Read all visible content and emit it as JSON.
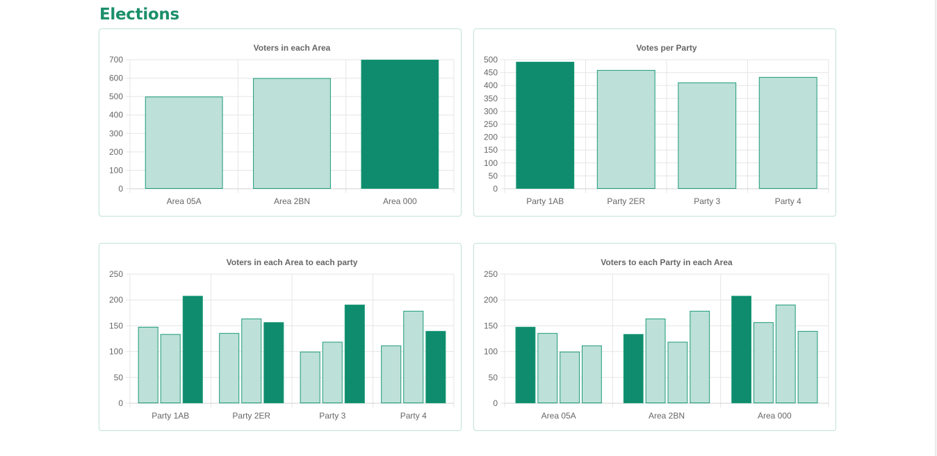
{
  "page": {
    "title": "Elections"
  },
  "colors": {
    "highlight": "#0e8c6d",
    "light": "#bde0d8",
    "border": "#1b9a78",
    "grid": "#e5e5e5",
    "card_border": "#bfe3d6",
    "text": "#666666",
    "title": "#1b8f6a"
  },
  "chart_data": [
    {
      "type": "bar",
      "title": "Voters in each Area",
      "categories": [
        "Area 05A",
        "Area 2BN",
        "Area 000"
      ],
      "series": [
        {
          "values": [
            500,
            600,
            700
          ],
          "highlight": [
            false,
            false,
            true
          ]
        }
      ],
      "ylim": [
        0,
        700
      ],
      "yticks": [
        0,
        100,
        200,
        300,
        400,
        500,
        600,
        700
      ],
      "grid": true
    },
    {
      "type": "bar",
      "title": "Votes per Party",
      "categories": [
        "Party 1AB",
        "Party 2ER",
        "Party 3",
        "Party 4"
      ],
      "series": [
        {
          "values": [
            492,
            460,
            412,
            433
          ],
          "highlight": [
            true,
            false,
            false,
            false
          ]
        }
      ],
      "ylim": [
        0,
        500
      ],
      "yticks": [
        0,
        50,
        100,
        150,
        200,
        250,
        300,
        350,
        400,
        450,
        500
      ],
      "grid": true
    },
    {
      "type": "bar",
      "title": "Voters in each Area to each party",
      "categories": [
        "Party 1AB",
        "Party 2ER",
        "Party 3",
        "Party 4"
      ],
      "series": [
        {
          "values": [
            148,
            136,
            100,
            112
          ],
          "highlight": [
            false,
            false,
            false,
            false
          ]
        },
        {
          "values": [
            134,
            164,
            119,
            179
          ],
          "highlight": [
            false,
            false,
            false,
            false
          ]
        },
        {
          "values": [
            208,
            157,
            191,
            140
          ],
          "highlight": [
            true,
            true,
            true,
            true
          ]
        }
      ],
      "ylim": [
        0,
        250
      ],
      "yticks": [
        0,
        50,
        100,
        150,
        200,
        250
      ],
      "grid": true
    },
    {
      "type": "bar",
      "title": "Voters to each Party in each Area",
      "categories": [
        "Area 05A",
        "Area 2BN",
        "Area 000"
      ],
      "series": [
        {
          "values": [
            148,
            134,
            208
          ],
          "highlight": [
            true,
            true,
            true
          ]
        },
        {
          "values": [
            136,
            164,
            157
          ],
          "highlight": [
            false,
            false,
            false
          ]
        },
        {
          "values": [
            100,
            119,
            191
          ],
          "highlight": [
            false,
            false,
            false
          ]
        },
        {
          "values": [
            112,
            179,
            140
          ],
          "highlight": [
            false,
            false,
            false
          ]
        }
      ],
      "ylim": [
        0,
        250
      ],
      "yticks": [
        0,
        50,
        100,
        150,
        200,
        250
      ],
      "grid": true
    }
  ]
}
